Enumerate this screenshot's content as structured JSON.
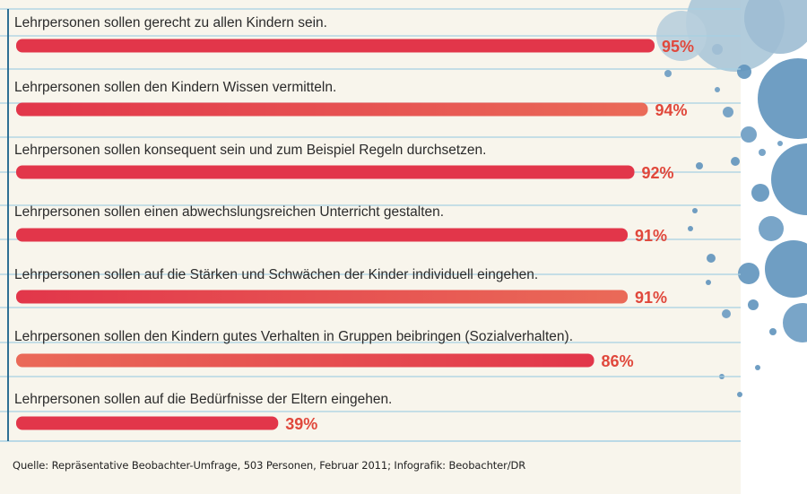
{
  "chart_data": {
    "type": "bar",
    "orientation": "horizontal",
    "title": "",
    "xlabel": "",
    "ylabel": "",
    "xlim": [
      0,
      100
    ],
    "grid": false,
    "legend": "none",
    "value_suffix": "%",
    "categories": [
      "Lehrpersonen sollen gerecht zu allen Kindern sein.",
      "Lehrpersonen sollen den Kindern Wissen vermitteln.",
      "Lehrpersonen sollen konsequent sein und zum Beispiel Regeln durchsetzen.",
      "Lehrpersonen sollen einen abwechslungsreichen Unterricht gestalten.",
      "Lehrpersonen sollen auf die Stärken und Schwächen der Kinder individuell eingehen.",
      "Lehrpersonen sollen den Kindern gutes Verhalten in Gruppen beibringen (Sozialverhalten).",
      "Lehrpersonen sollen auf die Bedürfnisse der Eltern eingehen."
    ],
    "values": [
      95,
      94,
      92,
      91,
      91,
      86,
      39
    ],
    "value_labels": [
      "95%",
      "94%",
      "92%",
      "91%",
      "91%",
      "86%",
      "39%"
    ]
  },
  "source": "Quelle: Repräsentative Beobachter-Umfrage, 503 Personen, Februar 2011; Infografik: Beobachter/DR",
  "colors": {
    "paper": "#f8f5ec",
    "rule_line": "#9cc9de",
    "margin_line": "#2f6f93",
    "bar_red": "#e2364a",
    "bar_coral": "#e86a58",
    "value_text": "#e0483c",
    "splatter": "#5f93bd"
  }
}
